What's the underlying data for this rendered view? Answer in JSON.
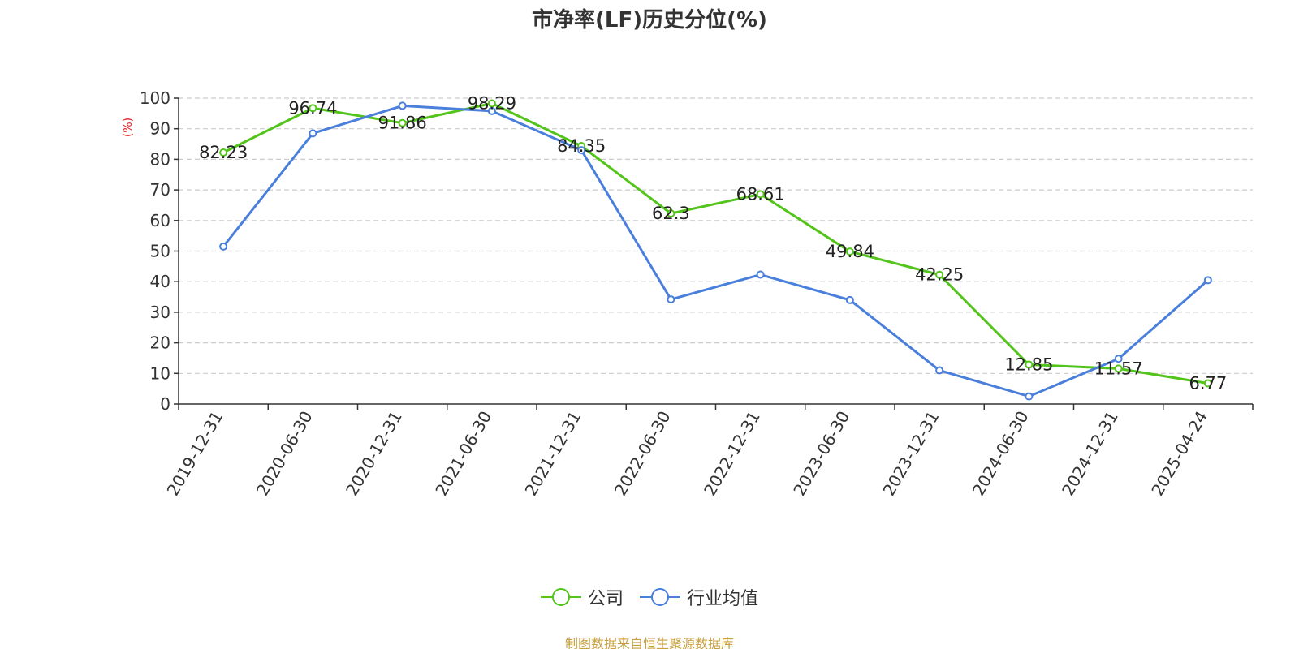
{
  "chart_data": {
    "type": "line",
    "title": "市净率(LF)历史分位(%)",
    "ylabel": "(%)",
    "ylim": [
      0,
      100
    ],
    "yticks": [
      0,
      10,
      20,
      30,
      40,
      50,
      60,
      70,
      80,
      90,
      100
    ],
    "categories": [
      "2019-12-31",
      "2020-06-30",
      "2020-12-31",
      "2021-06-30",
      "2021-12-31",
      "2022-06-30",
      "2022-12-31",
      "2023-06-30",
      "2023-12-31",
      "2024-06-30",
      "2024-12-31",
      "2025-04-24"
    ],
    "series": [
      {
        "name": "公司",
        "color": "#52c41a",
        "values": [
          82.23,
          96.74,
          91.86,
          98.29,
          84.35,
          62.3,
          68.61,
          49.84,
          42.25,
          12.85,
          11.57,
          6.77
        ],
        "labels": [
          "82.23",
          "96.74",
          "91.86",
          "98.29",
          "84.35",
          "62.3",
          "68.61",
          "49.84",
          "42.25",
          "12.85",
          "11.57",
          "6.77"
        ]
      },
      {
        "name": "行业均值",
        "color": "#4a7fdb",
        "values": [
          51.5,
          88.5,
          97.5,
          95.8,
          83.0,
          34.2,
          42.3,
          34.0,
          11.0,
          2.5,
          14.8,
          40.5
        ]
      }
    ],
    "grid": "horizontal dashed",
    "legend_position": "bottom-center"
  },
  "source": {
    "text": "制图数据来自恒生聚源数据库",
    "color": "#c8a040"
  },
  "colors": {
    "axis": "#333333",
    "grid": "#cccccc",
    "ylabel": "#e02020"
  }
}
